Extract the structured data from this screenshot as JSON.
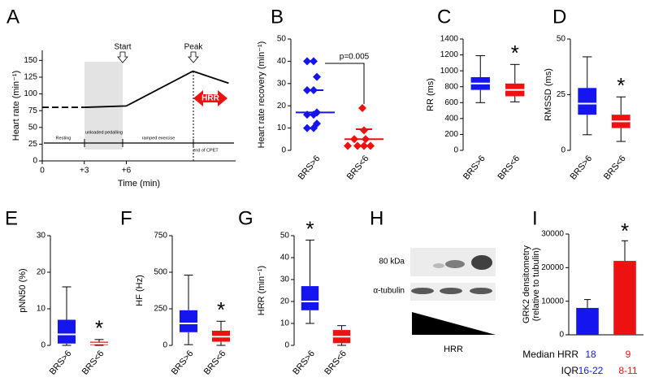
{
  "chart_data": [
    {
      "panel": "A",
      "type": "line",
      "ylabel": "Heart rate (min⁻¹)",
      "xlabel": "Time (min)",
      "xlim": [
        0,
        13.8
      ],
      "ylim": [
        0,
        165
      ],
      "xticks": [
        0,
        {
          "value": 3,
          "label": "+3"
        },
        {
          "value": 6,
          "label": "+6"
        }
      ],
      "yticks": [
        0,
        25,
        50,
        75,
        100,
        125,
        150
      ],
      "series": [
        {
          "x": [
            0,
            3
          ],
          "values": [
            80,
            80
          ],
          "dashed": true,
          "color": "#000000"
        },
        {
          "x": [
            3,
            6,
            10.75,
            13.3
          ],
          "values": [
            80,
            82,
            134,
            116
          ],
          "dashed": false,
          "color": "#000000"
        }
      ],
      "annotations": [
        "Start",
        "Peak",
        "HRR",
        "Resting",
        "unloaded pedalling",
        "ramped exercise",
        "end of CPET"
      ]
    },
    {
      "panel": "B",
      "type": "dot",
      "ylabel": "Heart rate recovery (min⁻¹)",
      "categories": [
        "BRS>6",
        "BRS<6"
      ],
      "ylim": [
        0,
        50
      ],
      "yticks": [
        0,
        10,
        20,
        30,
        40,
        50
      ],
      "groups": [
        {
          "color": "#1515ef",
          "values": [
            40,
            40,
            33,
            27,
            27,
            17,
            16,
            16,
            12,
            10,
            10
          ],
          "center": 17,
          "upper": 27
        },
        {
          "color": "#ee1111",
          "values": [
            19,
            9,
            5,
            5,
            2,
            2,
            2,
            2
          ],
          "center": 5,
          "upper": 9.5
        }
      ],
      "annotation": "p=0.005"
    },
    {
      "panel": "C",
      "type": "box",
      "ylabel": "RR (ms)",
      "categories": [
        "BRS>6",
        "BRS<6"
      ],
      "ylim": [
        0,
        1400
      ],
      "yticks": [
        0,
        200,
        400,
        600,
        800,
        1000,
        1200,
        1400
      ],
      "groups": [
        {
          "color": "#1515ef",
          "whisker_low": 600,
          "q1": 760,
          "median": 840,
          "q3": 920,
          "whisker_high": 1190
        },
        {
          "color": "#ee1111",
          "whisker_low": 610,
          "q1": 680,
          "median": 760,
          "q3": 840,
          "whisker_high": 1080,
          "annotation": "*"
        }
      ]
    },
    {
      "panel": "D",
      "type": "box",
      "ylabel": "RMSSD (ms)",
      "categories": [
        "BRS>6",
        "BRS<6"
      ],
      "ylim": [
        0,
        50
      ],
      "yticks": [
        0,
        25,
        50
      ],
      "groups": [
        {
          "color": "#1515ef",
          "whisker_low": 7,
          "q1": 16,
          "median": 21,
          "q3": 28,
          "whisker_high": 42
        },
        {
          "color": "#ee1111",
          "whisker_low": 4,
          "q1": 10,
          "median": 13,
          "q3": 16,
          "whisker_high": 24,
          "annotation": "*"
        }
      ]
    },
    {
      "panel": "E",
      "type": "box",
      "ylabel": "pNN50 (%)",
      "categories": [
        "BRS>6",
        "BRS<6"
      ],
      "ylim": [
        0,
        30
      ],
      "yticks": [
        0,
        10,
        20,
        30
      ],
      "groups": [
        {
          "color": "#1515ef",
          "whisker_low": 0,
          "q1": 0.5,
          "median": 3,
          "q3": 7,
          "whisker_high": 16
        },
        {
          "color": "#ee1111",
          "whisker_low": 0,
          "q1": 0.1,
          "median": 0.5,
          "q3": 1,
          "whisker_high": 1.6,
          "annotation": "*"
        }
      ]
    },
    {
      "panel": "F",
      "type": "box",
      "ylabel": "HF (Hz)",
      "categories": [
        "BRS>6",
        "BRS<6"
      ],
      "ylim": [
        0,
        750
      ],
      "yticks": [
        0,
        250,
        500,
        750
      ],
      "groups": [
        {
          "color": "#1515ef",
          "whisker_low": 5,
          "q1": 90,
          "median": 150,
          "q3": 240,
          "whisker_high": 480
        },
        {
          "color": "#ee1111",
          "whisker_low": 0,
          "q1": 25,
          "median": 60,
          "q3": 100,
          "whisker_high": 165,
          "annotation": "*"
        }
      ]
    },
    {
      "panel": "G",
      "type": "box",
      "ylabel": "HRR (min⁻¹)",
      "categories": [
        "BRS>6",
        "BRS<6"
      ],
      "ylim": [
        0,
        50
      ],
      "yticks": [
        0,
        10,
        20,
        30,
        40,
        50
      ],
      "groups": [
        {
          "color": "#1515ef",
          "whisker_low": 10,
          "q1": 16,
          "median": 20,
          "q3": 27,
          "whisker_high": 48,
          "annotation": "*"
        },
        {
          "color": "#ee1111",
          "whisker_low": 0,
          "q1": 1,
          "median": 4,
          "q3": 7,
          "whisker_high": 9
        }
      ]
    },
    {
      "panel": "H",
      "type": "blot",
      "labels": [
        "80 kDa",
        "α-tubulin"
      ],
      "xlabel": "HRR"
    },
    {
      "panel": "I",
      "type": "bar",
      "ylabel": [
        "GRK2 densitometry",
        "(relative to tubulin)"
      ],
      "categories": [
        null,
        null
      ],
      "ylim": [
        0,
        30000
      ],
      "yticks": [
        0,
        10000,
        20000,
        30000
      ],
      "values": [
        8000,
        22000
      ],
      "errors": [
        2500,
        6000
      ],
      "colors": [
        "#1515ef",
        "#ee1111"
      ],
      "annotations": [
        null,
        "*"
      ],
      "table": [
        {
          "label": "Median HRR",
          "values": [
            18,
            9
          ],
          "colors": [
            "#1515ef",
            "#ee1111"
          ]
        },
        {
          "label": "IQR",
          "values": [
            "16-22",
            "8-11"
          ],
          "colors": [
            "#1515ef",
            "#ee1111"
          ]
        }
      ]
    }
  ]
}
